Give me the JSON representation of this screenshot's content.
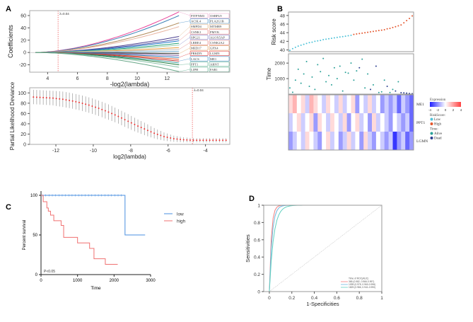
{
  "panels": {
    "a": "A",
    "b": "B",
    "c": "C",
    "d": "D"
  },
  "chart_data": [
    {
      "id": "coef-path",
      "type": "line",
      "xlabel": "-log2(lambda)",
      "ylabel": "Coefficients",
      "xticks": [
        4,
        6,
        8,
        10,
        12
      ],
      "yticks": [
        -20,
        0,
        20,
        40,
        60
      ],
      "xlim": [
        2.8,
        16.2
      ],
      "ylim": [
        -32,
        68
      ],
      "lambda_annotation": "λ=0.04",
      "lambda_x": 4.7,
      "x_end": 12.8,
      "series": [
        {
          "end": 66,
          "color": "#e8449a"
        },
        {
          "end": 60,
          "color": "#3b7fb5"
        },
        {
          "end": 48,
          "color": "#b08a5a"
        },
        {
          "end": 42,
          "color": "#e8b4a0"
        },
        {
          "end": 26,
          "color": "#4a3f8f"
        },
        {
          "end": 22,
          "color": "#5a5aa8"
        },
        {
          "end": 19,
          "color": "#1f77c9"
        },
        {
          "end": 15,
          "color": "#2aa37a"
        },
        {
          "end": 12,
          "color": "#9ad0b0"
        },
        {
          "end": 8,
          "color": "#e89a3a"
        },
        {
          "end": 5,
          "color": "#c0c0c0"
        },
        {
          "end": 2,
          "color": "#7fb8d8"
        },
        {
          "end": -2,
          "color": "#333333"
        },
        {
          "end": -5,
          "color": "#8a6bb0"
        },
        {
          "end": -8,
          "color": "#2b7bb9"
        },
        {
          "end": -11,
          "color": "#e4572e"
        },
        {
          "end": -14,
          "color": "#c02a2a"
        },
        {
          "end": -17,
          "color": "#3fa0a0"
        },
        {
          "end": -20,
          "color": "#1b7a3a"
        },
        {
          "end": -24,
          "color": "#88c0a8"
        },
        {
          "end": -31,
          "color": "#6aa88a"
        }
      ],
      "labels": [
        [
          "PITPNM3",
          "OSBPL9"
        ],
        [
          "ACSL4",
          "PLA2G1B"
        ],
        [
          "SMPD4",
          "MTMR9"
        ],
        [
          "CSNK1",
          "PMVK"
        ],
        [
          "SPG21",
          "ALOX5AP"
        ],
        [
          "LRRE4",
          "CSNK2A2"
        ],
        [
          "MED17",
          "GPX4"
        ],
        [
          "PRKDN",
          "LGMN"
        ],
        [
          "LACS",
          "ME1"
        ],
        [
          "PPT1",
          "ARNT"
        ],
        [
          "LIPH",
          "FAR1"
        ]
      ],
      "label_colors": [
        "#e8a0c8",
        "#4a90c8",
        "#e0b080",
        "#e88080",
        "#8080c8",
        "#e08080",
        "#e0a060",
        "#e04040",
        "#4a90c8",
        "#60b090",
        "#60b090"
      ]
    },
    {
      "id": "cv-deviance",
      "type": "line",
      "xlabel": "log2(lambda)",
      "ylabel": "Partial Likelihood Deviance",
      "xticks": [
        -12,
        -10,
        -8,
        -6,
        -4
      ],
      "yticks": [
        0,
        20,
        40,
        60,
        80,
        100
      ],
      "xlim": [
        -13.4,
        -2.7
      ],
      "ylim": [
        0,
        110
      ],
      "lambda_annotation": "λ=0.04",
      "lambda_x": -4.7,
      "x": [
        -13.2,
        -12.7,
        -12.2,
        -11.7,
        -11.2,
        -10.7,
        -10.2,
        -9.7,
        -9.2,
        -8.7,
        -8.2,
        -7.7,
        -7.2,
        -6.7,
        -6.2,
        -5.7,
        -5.2,
        -4.7,
        -4.2,
        -3.7,
        -3.2,
        -2.9
      ],
      "mean": [
        92,
        91,
        90,
        88,
        85,
        81,
        76,
        70,
        63,
        55,
        46,
        37,
        29,
        21,
        15,
        11,
        9,
        8,
        8,
        8,
        8,
        8
      ],
      "err": [
        14,
        14,
        14,
        15,
        15,
        15,
        15,
        15,
        15,
        14,
        14,
        13,
        12,
        10,
        8,
        6,
        5,
        4,
        4,
        4,
        4,
        4
      ]
    },
    {
      "id": "risk-score",
      "type": "scatter",
      "ylabel": "Risk score",
      "yticks": [
        40,
        42,
        44,
        46,
        48
      ],
      "ylim": [
        39.6,
        48.8
      ],
      "low_color": "#4fc3d9",
      "high_color": "#e4572e",
      "values": [
        39.9,
        40.3,
        40.6,
        40.9,
        41.1,
        41.3,
        41.5,
        41.7,
        41.8,
        42.0,
        42.1,
        42.2,
        42.4,
        42.5,
        42.6,
        42.7,
        42.8,
        42.9,
        43.0,
        43.1,
        43.2,
        43.3,
        43.4,
        43.6,
        43.7,
        43.8,
        43.9,
        44.0,
        44.1,
        44.2,
        44.3,
        44.4,
        44.5,
        44.6,
        44.7,
        44.9,
        45.0,
        45.2,
        45.4,
        45.6,
        45.8,
        46.3,
        46.8,
        47.3,
        47.9
      ],
      "low_count": 23
    },
    {
      "id": "survival-time",
      "type": "scatter",
      "ylabel": "Time",
      "yticks": [
        1000,
        2000
      ],
      "ylim": [
        0,
        2600
      ],
      "alive_color": "#2aa198",
      "dead_color": "#2b3d8f",
      "time": [
        400,
        120,
        900,
        1600,
        700,
        1300,
        2100,
        500,
        1100,
        300,
        1900,
        1450,
        2300,
        800,
        1200,
        600,
        1700,
        1000,
        1800,
        200,
        1400,
        1350,
        2000,
        900,
        1500,
        1700,
        2250,
        400,
        1300,
        300,
        600,
        1800,
        100,
        150,
        900,
        500,
        100,
        300,
        200,
        800,
        90,
        80,
        60,
        40,
        30
      ],
      "dead": [
        0,
        0,
        0,
        0,
        0,
        0,
        0,
        0,
        0,
        0,
        0,
        0,
        0,
        0,
        0,
        0,
        0,
        0,
        0,
        0,
        0,
        0,
        0,
        0,
        0,
        1,
        0,
        0,
        0,
        1,
        0,
        1,
        0,
        0,
        0,
        1,
        0,
        0,
        1,
        0,
        1,
        1,
        1,
        1,
        1
      ]
    },
    {
      "id": "heatmap",
      "type": "heatmap",
      "rows": [
        "ME1",
        "PPT1",
        "LGMN"
      ],
      "values": [
        [
          1,
          2,
          0,
          1,
          -1,
          2,
          1,
          0,
          -1,
          1,
          0,
          -1,
          1,
          -1,
          0,
          1,
          -2,
          0,
          -1,
          1,
          -1,
          0,
          -2,
          -1,
          -2,
          -1,
          -3,
          -1,
          -2,
          -3
        ],
        [
          -1,
          0,
          1,
          -1,
          0,
          1,
          -2,
          1,
          0,
          -1,
          1,
          0,
          -1,
          1,
          -2,
          0,
          1,
          -1,
          0,
          -2,
          1,
          -1,
          0,
          -1,
          -2,
          0,
          -1,
          -2,
          -1,
          -3
        ],
        [
          -2,
          -1,
          0,
          -1,
          1,
          0,
          -1,
          -2,
          0,
          1,
          -1,
          0,
          -2,
          -1,
          1,
          -1,
          0,
          -2,
          1,
          -1,
          -2,
          0,
          -1,
          -2,
          -1,
          -4,
          -2,
          -1,
          -3,
          -2
        ]
      ],
      "legend": {
        "expression_title": "Expression",
        "ticks": [
          "-4",
          "-2",
          "0",
          "2",
          "4"
        ],
        "riskscore_title": "RiskScore:",
        "low": "Low",
        "high": "High",
        "time_title": "Time:",
        "alive": "Alive",
        "dead": "Dead"
      }
    },
    {
      "id": "km",
      "type": "line",
      "xlabel": "Time",
      "ylabel": "Percent survival",
      "xticks": [
        0,
        1000,
        2000,
        3000
      ],
      "yticks": [
        0,
        50,
        100
      ],
      "xlim": [
        0,
        3000
      ],
      "ylim": [
        0,
        100
      ],
      "pvalue": "P<0.05",
      "series": [
        {
          "name": "low",
          "color": "#4a8fe0",
          "x": [
            0,
            2300,
            2300,
            2850
          ],
          "y": [
            100,
            100,
            50,
            50
          ]
        },
        {
          "name": "high",
          "color": "#f07070",
          "x": [
            0,
            60,
            60,
            160,
            160,
            200,
            200,
            260,
            260,
            350,
            350,
            550,
            550,
            620,
            620,
            1000,
            1000,
            1330,
            1330,
            1450,
            1450,
            1760,
            1760,
            2100
          ],
          "y": [
            100,
            100,
            92,
            92,
            84,
            84,
            80,
            80,
            75,
            75,
            68,
            68,
            62,
            62,
            47,
            47,
            40,
            40,
            33,
            33,
            20,
            20,
            13,
            13
          ]
        }
      ]
    },
    {
      "id": "roc",
      "type": "line",
      "xlabel": "1-Specificities",
      "ylabel": "Sensitivities",
      "xticks": [
        0.0,
        0.2,
        0.4,
        0.6,
        0.8,
        1.0
      ],
      "yticks": [
        0.0,
        0.2,
        0.4,
        0.6,
        0.8,
        1.0
      ],
      "xlim": [
        -0.05,
        1.0
      ],
      "ylim": [
        0,
        1.0
      ],
      "legend_title": "Time of ROC(AUC)",
      "series": [
        {
          "name": "365 (0.982, 0.966-0.997)",
          "color": "#f08080",
          "k": 0.018
        },
        {
          "name": "1095 (0.978, 0.960-0.996)",
          "color": "#70b8e0",
          "k": 0.025
        },
        {
          "name": "1825 (0.966, 0.941-0.990)",
          "color": "#60d0c0",
          "k": 0.04
        }
      ]
    }
  ]
}
